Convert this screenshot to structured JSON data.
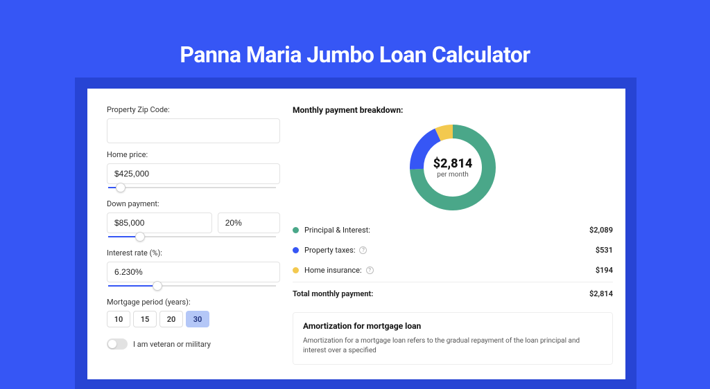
{
  "page": {
    "title": "Panna Maria Jumbo Loan Calculator",
    "background_color": "#3656f5",
    "frame_color": "#2744d4",
    "card_color": "#ffffff"
  },
  "form": {
    "zip": {
      "label": "Property Zip Code:",
      "value": ""
    },
    "home_price": {
      "label": "Home price:",
      "value": "$425,000",
      "slider_pct": 8
    },
    "down_payment": {
      "label": "Down payment:",
      "amount": "$85,000",
      "percent": "20%",
      "slider_pct": 19
    },
    "interest_rate": {
      "label": "Interest rate (%):",
      "value": "6.230%",
      "slider_pct": 29
    },
    "mortgage_period": {
      "label": "Mortgage period (years):",
      "options": [
        "10",
        "15",
        "20",
        "30"
      ],
      "selected_index": 3
    },
    "veteran": {
      "label": "I am veteran or military",
      "checked": false
    }
  },
  "breakdown": {
    "title": "Monthly payment breakdown:",
    "center_value": "$2,814",
    "center_sub": "per month",
    "donut": {
      "type": "donut",
      "radius": 62,
      "thickness": 20,
      "segments": [
        {
          "label": "Principal & Interest:",
          "percent": 74.2,
          "color": "#4aa789",
          "amount": "$2,089",
          "info": false
        },
        {
          "label": "Property taxes:",
          "percent": 18.9,
          "color": "#3656f5",
          "amount": "$531",
          "info": true
        },
        {
          "label": "Home insurance:",
          "percent": 6.9,
          "color": "#f3c94f",
          "amount": "$194",
          "info": true
        }
      ]
    },
    "total": {
      "label": "Total monthly payment:",
      "amount": "$2,814"
    }
  },
  "amortization": {
    "title": "Amortization for mortgage loan",
    "text": "Amortization for a mortgage loan refers to the gradual repayment of the loan principal and interest over a specified"
  }
}
